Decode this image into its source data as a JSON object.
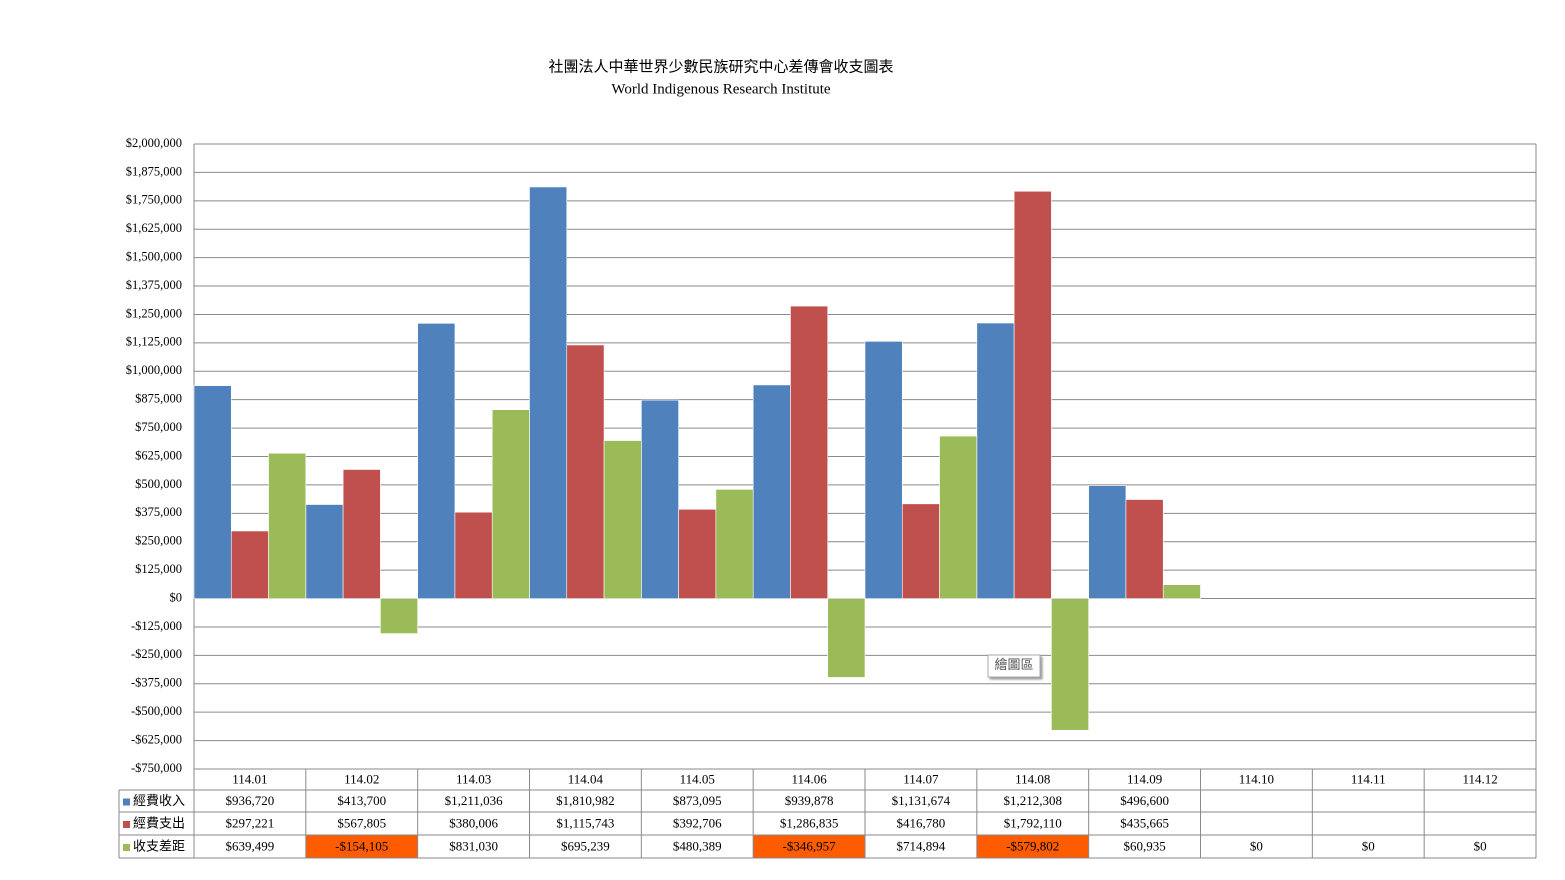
{
  "chart_data": {
    "type": "bar",
    "title": "社團法人中華世界少數民族研究中心差傳會收支圖表",
    "subtitle": "World Indigenous Research Institute",
    "categories": [
      "114.01",
      "114.02",
      "114.03",
      "114.04",
      "114.05",
      "114.06",
      "114.07",
      "114.08",
      "114.09",
      "114.10",
      "114.11",
      "114.12"
    ],
    "series": [
      {
        "name": "經費收入",
        "color": "#4f81bd",
        "values": [
          936720,
          413700,
          1211036,
          1810982,
          873095,
          939878,
          1131674,
          1212308,
          496600,
          null,
          null,
          null
        ],
        "value_labels": [
          "$936,720",
          "$413,700",
          "$1,211,036",
          "$1,810,982",
          "$873,095",
          "$939,878",
          "$1,131,674",
          "$1,212,308",
          "$496,600",
          null,
          null,
          null
        ]
      },
      {
        "name": "經費支出",
        "color": "#c0504d",
        "values": [
          297221,
          567805,
          380006,
          1115743,
          392706,
          1286835,
          416780,
          1792110,
          435665,
          null,
          null,
          null
        ],
        "value_labels": [
          "$297,221",
          "$567,805",
          "$380,006",
          "$1,115,743",
          "$392,706",
          "$1,286,835",
          "$416,780",
          "$1,792,110",
          "$435,665",
          null,
          null,
          null
        ]
      },
      {
        "name": "收支差距",
        "color": "#9bbb59",
        "values": [
          639499,
          -154105,
          831030,
          695239,
          480389,
          -346957,
          714894,
          -579802,
          60935,
          0,
          0,
          0
        ],
        "value_labels": [
          "$639,499",
          "-$154,105",
          "$831,030",
          "$695,239",
          "$480,389",
          "-$346,957",
          "$714,894",
          "-$579,802",
          "$60,935",
          "$0",
          "$0",
          "$0"
        ]
      }
    ],
    "ylim": [
      -750000,
      2000000
    ],
    "yticks": [
      {
        "value": -750000,
        "label": "-$750,000"
      },
      {
        "value": -625000,
        "label": "-$625,000"
      },
      {
        "value": -500000,
        "label": "-$500,000"
      },
      {
        "value": -375000,
        "label": "-$375,000"
      },
      {
        "value": -250000,
        "label": "-$250,000"
      },
      {
        "value": -125000,
        "label": "-$125,000"
      },
      {
        "value": 0,
        "label": "$0"
      },
      {
        "value": 125000,
        "label": "$125,000"
      },
      {
        "value": 250000,
        "label": "$250,000"
      },
      {
        "value": 375000,
        "label": "$375,000"
      },
      {
        "value": 500000,
        "label": "$500,000"
      },
      {
        "value": 625000,
        "label": "$625,000"
      },
      {
        "value": 750000,
        "label": "$750,000"
      },
      {
        "value": 875000,
        "label": "$875,000"
      },
      {
        "value": 1000000,
        "label": "$1,000,000"
      },
      {
        "value": 1125000,
        "label": "$1,125,000"
      },
      {
        "value": 1250000,
        "label": "$1,250,000"
      },
      {
        "value": 1375000,
        "label": "$1,375,000"
      },
      {
        "value": 1500000,
        "label": "$1,500,000"
      },
      {
        "value": 1625000,
        "label": "$1,625,000"
      },
      {
        "value": 1750000,
        "label": "$1,750,000"
      },
      {
        "value": 1875000,
        "label": "$1,875,000"
      },
      {
        "value": 2000000,
        "label": "$2,000,000"
      }
    ],
    "grid": true,
    "negative_highlight": "#ff5b00",
    "tooltip": "繪圖區"
  }
}
